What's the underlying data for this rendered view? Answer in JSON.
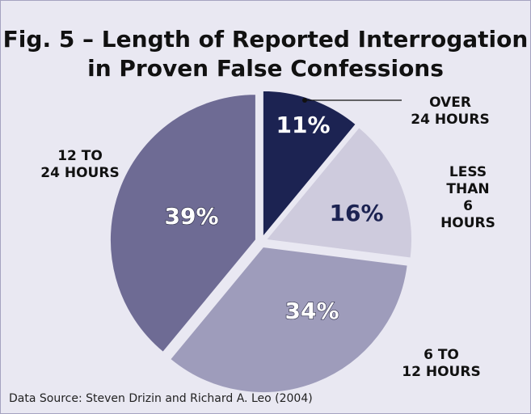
{
  "chart_data": {
    "type": "pie",
    "title": "Fig. 5 – Length of Reported Interrogation\nin Proven False Confessions",
    "categories": [
      "OVER\n24 HOURS",
      "LESS THAN\n6 HOURS",
      "6 TO\n12 HOURS",
      "12 TO\n24 HOURS"
    ],
    "values": [
      11,
      16,
      34,
      39
    ],
    "value_labels": [
      "11%",
      "16%",
      "34%",
      "39%"
    ],
    "colors": [
      "#1c2352",
      "#cecbdd",
      "#9e9cbb",
      "#6e6b94"
    ],
    "label_colors": [
      "#ffffff",
      "#1c2352",
      "#ffffff",
      "#ffffff"
    ],
    "source": "Data Source: Steven Drizin and Richard A. Leo (2004)"
  }
}
